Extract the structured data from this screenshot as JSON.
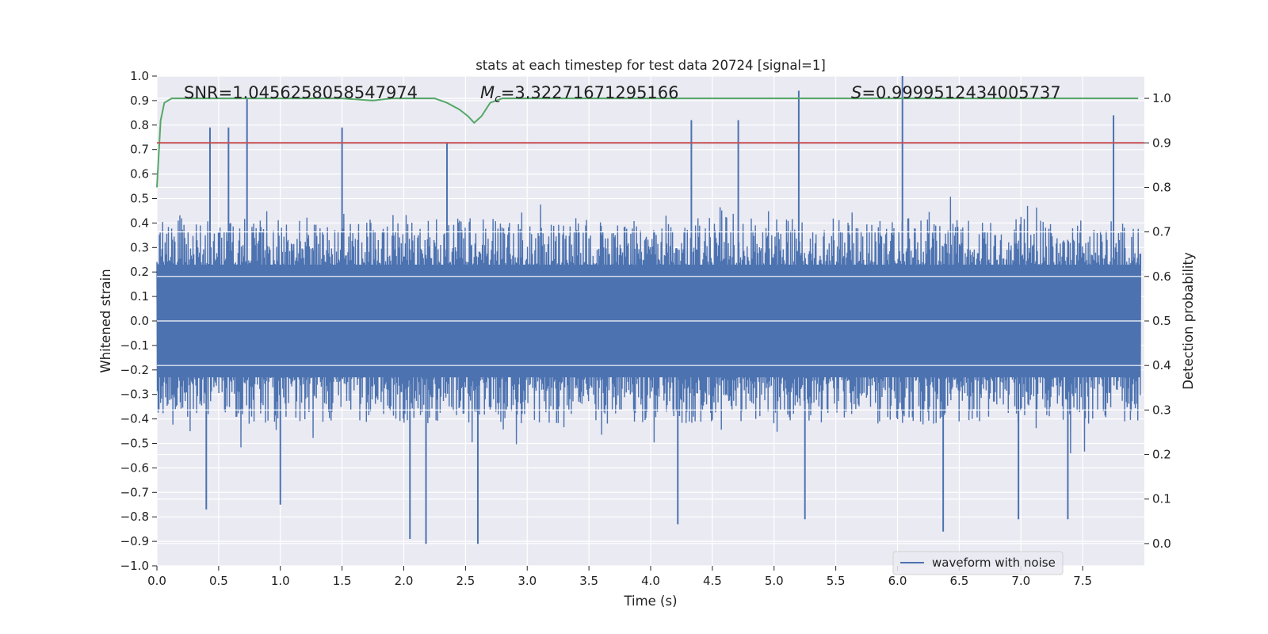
{
  "chart_data": {
    "type": "line",
    "title": "stats at each timestep for test data 20724 [signal=1]",
    "xlabel": "Time (s)",
    "ylabel_left": "Whitened strain",
    "ylabel_right": "Detection probability",
    "xlim": [
      0.0,
      8.0
    ],
    "ylim_left": [
      -1.0,
      1.0
    ],
    "ylim_right": [
      -0.05,
      1.05
    ],
    "x_ticks": [
      "0.0",
      "0.5",
      "1.0",
      "1.5",
      "2.0",
      "2.5",
      "3.0",
      "3.5",
      "4.0",
      "4.5",
      "5.0",
      "5.5",
      "6.0",
      "6.5",
      "7.0",
      "7.5"
    ],
    "y_ticks_left": [
      "−1.0",
      "−0.9",
      "−0.8",
      "−0.7",
      "−0.6",
      "−0.5",
      "−0.4",
      "−0.3",
      "−0.2",
      "−0.1",
      "0.0",
      "0.1",
      "0.2",
      "0.3",
      "0.4",
      "0.5",
      "0.6",
      "0.7",
      "0.8",
      "0.9",
      "1.0"
    ],
    "y_ticks_right": [
      "0.0",
      "0.1",
      "0.2",
      "0.3",
      "0.4",
      "0.5",
      "0.6",
      "0.7",
      "0.8",
      "0.9",
      "1.0"
    ],
    "grid": true,
    "legend_position": "lower-right",
    "annotations": {
      "snr": "SNR=1.0456258058547974",
      "mc_symbol": "M",
      "mc_sub": "c",
      "mc_value": "=3.32271671295166",
      "s_symbol": "S",
      "s_value": "=0.9999512434005737"
    },
    "series": [
      {
        "name": "waveform with noise",
        "axis": "left",
        "color": "#4c72b0",
        "description": "noisy whitened strain, dense oscillation roughly within ±0.45 with spikes",
        "spikes": [
          {
            "x": 0.43,
            "y": 0.79
          },
          {
            "x": 0.58,
            "y": 0.79
          },
          {
            "x": 0.73,
            "y": 0.91
          },
          {
            "x": 1.5,
            "y": 0.79
          },
          {
            "x": 2.35,
            "y": 0.73
          },
          {
            "x": 4.33,
            "y": 0.82
          },
          {
            "x": 4.71,
            "y": 0.82
          },
          {
            "x": 5.2,
            "y": 0.94
          },
          {
            "x": 6.04,
            "y": 1.0
          },
          {
            "x": 7.75,
            "y": 0.84
          },
          {
            "x": 0.4,
            "y": -0.77
          },
          {
            "x": 1.0,
            "y": -0.75
          },
          {
            "x": 2.05,
            "y": -0.89
          },
          {
            "x": 2.18,
            "y": -0.91
          },
          {
            "x": 2.6,
            "y": -0.91
          },
          {
            "x": 4.22,
            "y": -0.83
          },
          {
            "x": 5.25,
            "y": -0.81
          },
          {
            "x": 6.37,
            "y": -0.86
          },
          {
            "x": 6.98,
            "y": -0.81
          },
          {
            "x": 7.38,
            "y": -0.81
          }
        ]
      },
      {
        "name": "",
        "axis": "right",
        "color": "#55a868",
        "x": [
          0.0,
          0.03,
          0.06,
          0.12,
          0.2,
          1.5,
          1.75,
          1.9,
          2.0,
          2.25,
          2.35,
          2.45,
          2.52,
          2.57,
          2.63,
          2.7,
          2.8,
          3.0,
          7.95
        ],
        "y": [
          0.8,
          0.95,
          0.99,
          1.0,
          1.0,
          1.0,
          0.995,
          1.0,
          1.0,
          1.0,
          0.99,
          0.975,
          0.96,
          0.945,
          0.96,
          0.99,
          1.0,
          1.0,
          1.0
        ]
      },
      {
        "name": "",
        "axis": "right",
        "color": "#c44e52",
        "x": [
          0.0,
          8.0
        ],
        "y": [
          0.9,
          0.9
        ]
      }
    ]
  },
  "colors": {
    "plot_background": "#eaeaf2",
    "grid": "#ffffff",
    "waveform": "#4c72b0",
    "probability": "#55a868",
    "threshold": "#c44e52"
  }
}
